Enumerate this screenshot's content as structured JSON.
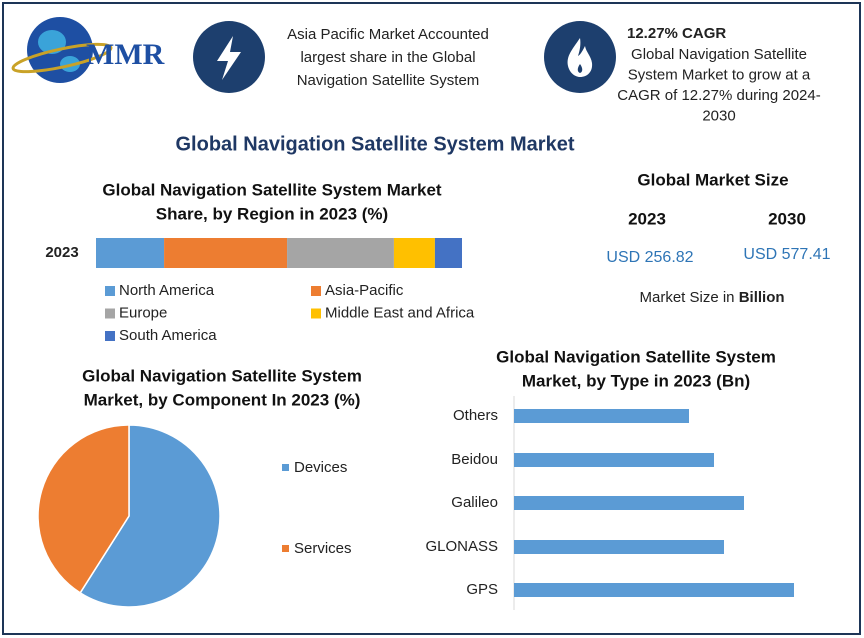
{
  "logo": "MMR",
  "header": {
    "left": [
      "Asia Pacific Market Accounted",
      "largest share in the Global",
      "Navigation Satellite System"
    ],
    "right_title": "12.27% CAGR",
    "right": [
      "Global Navigation Satellite",
      "System Market to grow at a",
      "CAGR of 12.27% during 2024-",
      "2030"
    ]
  },
  "title": "Global Navigation Satellite System Market",
  "market_size": {
    "title": "Global Market Size",
    "years": [
      "2023",
      "2030"
    ],
    "values": [
      "USD 256.82",
      "USD 577.41"
    ],
    "note": "Market Size in ",
    "note_bold": "Billion"
  },
  "chart_data": [
    {
      "type": "bar",
      "stacked": true,
      "orientation": "horizontal",
      "title": [
        "Global Navigation Satellite System Market",
        "Share, by Region in 2023 (%)"
      ],
      "categories": [
        "2023"
      ],
      "xlim": [
        0,
        100
      ],
      "series": [
        {
          "name": "North America",
          "color": "#5b9bd5",
          "values": [
            18.6
          ]
        },
        {
          "name": "Asia-Pacific",
          "color": "#ed7d31",
          "values": [
            33.6
          ]
        },
        {
          "name": "Europe",
          "color": "#a5a5a5",
          "values": [
            29.2
          ]
        },
        {
          "name": "Middle East and Africa",
          "color": "#ffc000",
          "values": [
            11.2
          ]
        },
        {
          "name": "South America",
          "color": "#4472c4",
          "values": [
            7.4
          ]
        }
      ]
    },
    {
      "type": "pie",
      "title": [
        "Global Navigation Satellite System",
        "Market, by Component In 2023 (%)"
      ],
      "categories": [
        "Devices",
        "Services"
      ],
      "values": [
        59,
        41
      ],
      "colors": [
        "#5b9bd5",
        "#ed7d31"
      ]
    },
    {
      "type": "bar",
      "orientation": "horizontal",
      "title": [
        "Global Navigation Satellite System",
        "Market, by Type in 2023 (Bn)"
      ],
      "categories": [
        "Others",
        "Beidou",
        "Galileo",
        "GLONASS",
        "GPS"
      ],
      "values": [
        3.5,
        4.0,
        4.6,
        4.2,
        5.6
      ],
      "color": "#5b9bd5",
      "xlim": [
        0,
        6
      ]
    }
  ]
}
